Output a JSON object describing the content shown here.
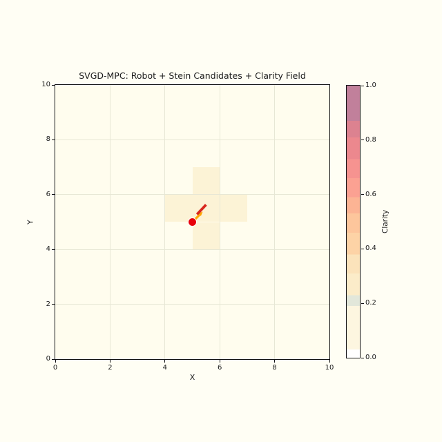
{
  "figure": {
    "background_color": "#fffef4",
    "plot_background_color": "#fffdee",
    "grid_color": "#e7e7d5",
    "spine_color": "#111111",
    "text_color": "#1a1a1a"
  },
  "chart_data": {
    "type": "heatmap",
    "title": "SVGD-MPC: Robot + Stein Candidates + Clarity Field",
    "xlabel": "X",
    "ylabel": "Y",
    "xlim": [
      0,
      10
    ],
    "ylim": [
      0,
      10
    ],
    "xticks": [
      "0",
      "2",
      "4",
      "6",
      "8",
      "10"
    ],
    "yticks": [
      "0",
      "2",
      "4",
      "6",
      "8",
      "10"
    ],
    "grid": true,
    "legend": "none",
    "clarity_field": {
      "background_value": 0.04,
      "cells": [
        {
          "x_range": [
            5,
            6
          ],
          "y_range": [
            6,
            7
          ],
          "value": 0.15,
          "color": "#fcf3d6"
        },
        {
          "x_range": [
            4,
            7
          ],
          "y_range": [
            5,
            6
          ],
          "value": 0.15,
          "color": "#fcf3d6"
        },
        {
          "x_range": [
            5,
            6
          ],
          "y_range": [
            4,
            5
          ],
          "value": 0.15,
          "color": "#fcf3d6"
        }
      ]
    },
    "robot": {
      "x": 5.0,
      "y": 5.0,
      "marker": "circle",
      "color": "#e8000b",
      "edge_color": "#ffffff"
    },
    "heading_arrow": {
      "x": 5.0,
      "y": 5.0,
      "dx": 0.38,
      "dy": 0.38,
      "color": "#ffa500"
    },
    "stein_candidates": [
      {
        "x_start": 5.17,
        "y_start": 5.28,
        "x_end": 5.5,
        "y_end": 5.63,
        "color": "#d8281e"
      }
    ],
    "colorbar": {
      "label": "Clarity",
      "range": [
        0,
        1
      ],
      "ticks": [
        "0.0",
        "0.2",
        "0.4",
        "0.6",
        "0.8",
        "1.0"
      ],
      "bands": [
        {
          "from": 0.0,
          "to": 0.03,
          "color": "#ffffff"
        },
        {
          "from": 0.03,
          "to": 0.19,
          "color": "#fdf6e0"
        },
        {
          "from": 0.19,
          "to": 0.23,
          "color": "#e2e7da"
        },
        {
          "from": 0.23,
          "to": 0.31,
          "color": "#fbecc9"
        },
        {
          "from": 0.31,
          "to": 0.38,
          "color": "#fbe3bb"
        },
        {
          "from": 0.38,
          "to": 0.46,
          "color": "#fdd3a6"
        },
        {
          "from": 0.46,
          "to": 0.53,
          "color": "#fdc69c"
        },
        {
          "from": 0.53,
          "to": 0.59,
          "color": "#fcb494"
        },
        {
          "from": 0.59,
          "to": 0.66,
          "color": "#fba192"
        },
        {
          "from": 0.66,
          "to": 0.73,
          "color": "#f69390"
        },
        {
          "from": 0.73,
          "to": 0.81,
          "color": "#ec888e"
        },
        {
          "from": 0.81,
          "to": 0.87,
          "color": "#dc8290"
        },
        {
          "from": 0.87,
          "to": 1.0,
          "color": "#c1809b"
        }
      ]
    }
  }
}
